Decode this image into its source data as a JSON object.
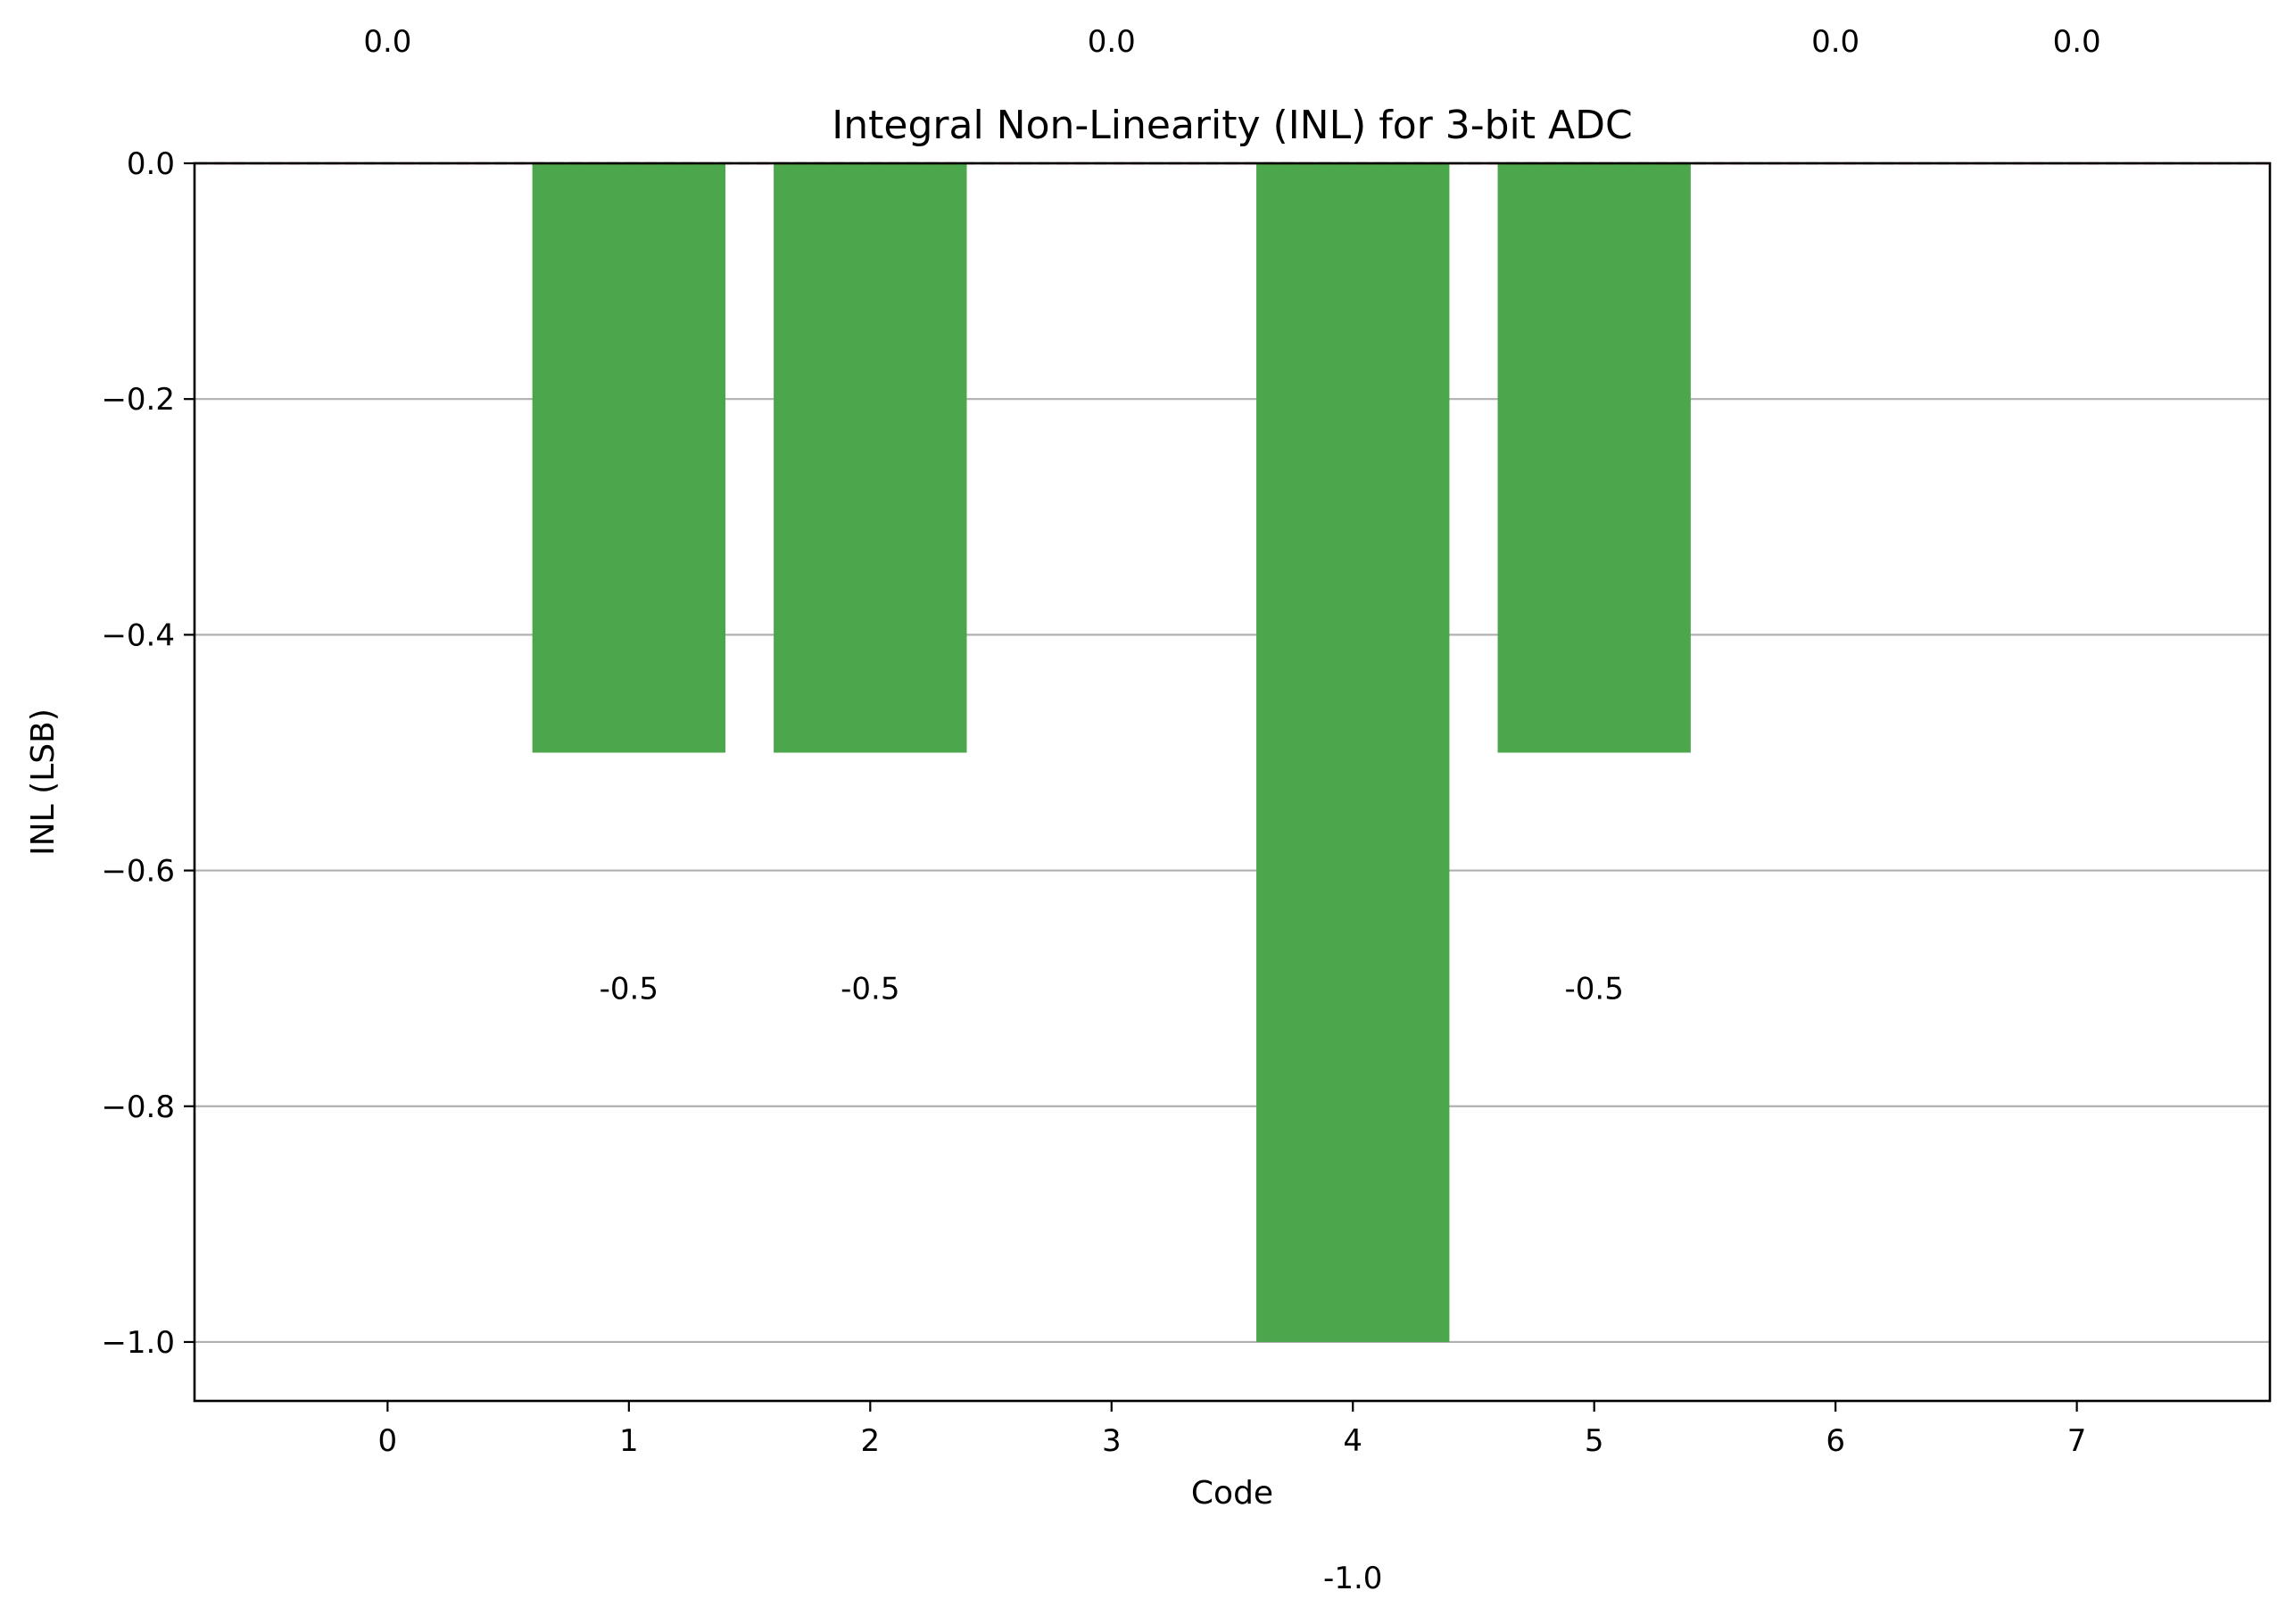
{
  "chart_data": {
    "type": "bar",
    "title": "Integral Non-Linearity (INL) for 3-bit ADC",
    "xlabel": "Code",
    "ylabel": "INL (LSB)",
    "categories": [
      "0",
      "1",
      "2",
      "3",
      "4",
      "5",
      "6",
      "7"
    ],
    "values": [
      0.0,
      -0.5,
      -0.5,
      0.0,
      -1.0,
      -0.5,
      0.0,
      0.0
    ],
    "data_labels": [
      "0.0",
      "-0.5",
      "-0.5",
      "0.0",
      "-1.0",
      "-0.5",
      "0.0",
      "0.0"
    ],
    "ylim": [
      -1.05,
      0.0
    ],
    "xlim": [
      -0.8,
      7.8
    ],
    "yticks": [
      0.0,
      -0.2,
      -0.4,
      -0.6,
      -0.8,
      -1.0
    ],
    "ytick_labels": [
      "0.0",
      "−0.2",
      "−0.4",
      "−0.6",
      "−0.8",
      "−1.0"
    ],
    "reference_line": 0.0,
    "grid": "y",
    "legend": "none",
    "colors": {
      "bar": "#4ca64c",
      "grid": "#b0b0b0",
      "reference_line": "#c0392b",
      "axes": "#000000"
    }
  }
}
